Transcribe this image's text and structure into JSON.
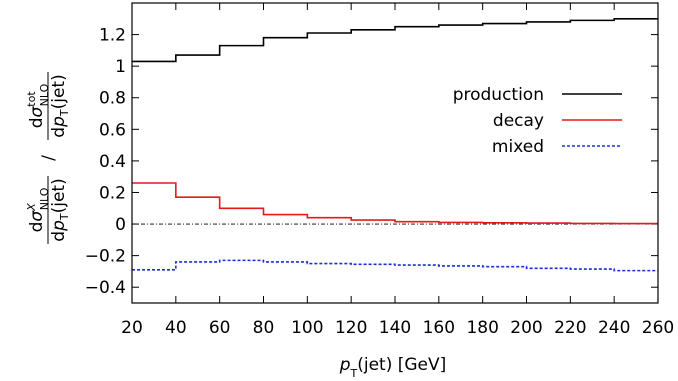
{
  "chart_data": {
    "type": "line",
    "step": true,
    "xlabel": "pT(jet) [GeV]",
    "ylabel": "dσ^X_NLO/dpT(jet) / dσ^tot_NLO/dpT(jet)",
    "xlim": [
      20,
      260
    ],
    "ylim": [
      -0.5,
      1.4
    ],
    "x_ticks": [
      20,
      40,
      60,
      80,
      100,
      120,
      140,
      160,
      180,
      200,
      220,
      240,
      260
    ],
    "y_ticks": [
      -0.4,
      -0.2,
      0,
      0.2,
      0.4,
      0.6,
      0.8,
      1,
      1.2
    ],
    "x_tick_labels": [
      "20",
      "40",
      "60",
      "80",
      "100",
      "120",
      "140",
      "160",
      "180",
      "200",
      "220",
      "240",
      "260"
    ],
    "y_tick_labels": [
      "−0.4",
      "−0.2",
      "0",
      "0.2",
      "0.4",
      "0.6",
      "0.8",
      "1",
      "1.2"
    ],
    "bin_edges": [
      20,
      40,
      60,
      80,
      100,
      120,
      140,
      160,
      180,
      200,
      220,
      240,
      260
    ],
    "reference_line": 0,
    "legend_position": "upper-right",
    "series": [
      {
        "name": "production",
        "color": "#000000",
        "dash": "solid",
        "values": [
          1.03,
          1.07,
          1.13,
          1.18,
          1.21,
          1.23,
          1.25,
          1.26,
          1.27,
          1.28,
          1.29,
          1.3
        ]
      },
      {
        "name": "decay",
        "color": "#e41a1c",
        "dash": "solid",
        "values": [
          0.26,
          0.17,
          0.1,
          0.06,
          0.04,
          0.025,
          0.015,
          0.01,
          0.008,
          0.006,
          0.004,
          0.003
        ]
      },
      {
        "name": "mixed",
        "color": "#1a2fd6",
        "dash": "dashed",
        "values": [
          -0.29,
          -0.24,
          -0.23,
          -0.24,
          -0.25,
          -0.255,
          -0.26,
          -0.265,
          -0.27,
          -0.28,
          -0.285,
          -0.295
        ]
      }
    ]
  }
}
